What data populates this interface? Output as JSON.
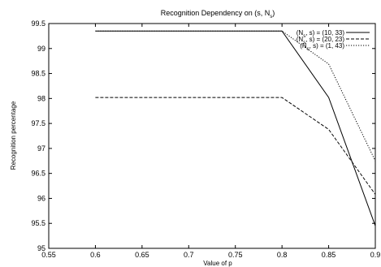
{
  "chart_data": {
    "type": "line",
    "title": "Recognition Dependency on (s, N",
    "title_sub": "s",
    "title_tail": ")",
    "xlabel": "Value of p",
    "ylabel": "Recognition percentage",
    "xlim": [
      0.55,
      0.9
    ],
    "ylim": [
      95,
      99.5
    ],
    "x_ticks": [
      "0.55",
      "0.6",
      "0.65",
      "0.7",
      "0.75",
      "0.8",
      "0.85",
      "0.9"
    ],
    "y_ticks": [
      "95",
      "95.5",
      "96",
      "96.5",
      "97",
      "97.5",
      "98",
      "98.5",
      "99",
      "99.5"
    ],
    "grid": false,
    "legend_position": "top-right",
    "x": [
      0.6,
      0.8,
      0.85,
      0.9
    ],
    "series": [
      {
        "legend_pre": "(N",
        "legend_sub": "s",
        "legend_post": ", s) = (10, 33)",
        "values": [
          99.35,
          99.35,
          98.02,
          95.45
        ],
        "dash": "solid"
      },
      {
        "legend_pre": "(N",
        "legend_sub": "s",
        "legend_post": ", s) = (20, 23)",
        "values": [
          98.02,
          98.02,
          97.38,
          96.08
        ],
        "dash": "dashed"
      },
      {
        "legend_pre": "(N",
        "legend_sub": "s",
        "legend_post": ", s) = (1, 43)",
        "values": [
          99.35,
          99.35,
          98.69,
          96.75
        ],
        "dash": "dotted"
      }
    ]
  }
}
